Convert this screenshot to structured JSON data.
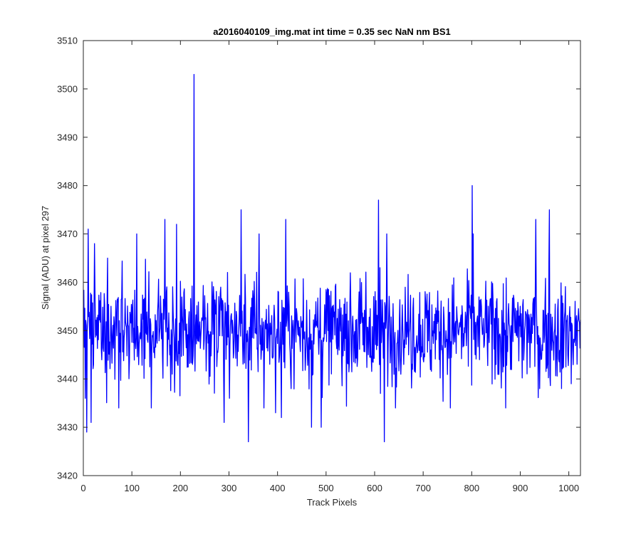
{
  "chart_data": {
    "type": "line",
    "title": "a2016040109_img.mat int time = 0.35 sec  NaN nm BS1",
    "xlabel": "Track Pixels",
    "ylabel": "Signal (ADU) at pixel 297",
    "xlim": [
      0,
      1024
    ],
    "ylim": [
      3420,
      3510
    ],
    "xticks": [
      0,
      100,
      200,
      300,
      400,
      500,
      600,
      700,
      800,
      900,
      1000
    ],
    "yticks": [
      3420,
      3430,
      3440,
      3450,
      3460,
      3470,
      3480,
      3490,
      3500,
      3510
    ],
    "grid": false,
    "series": [
      {
        "color": "#0000ff",
        "n_points": 1024,
        "mean": 3450,
        "noise_amplitude": 6,
        "x": [
          4,
          7,
          10,
          16,
          23,
          50,
          73,
          110,
          140,
          168,
          192,
          228,
          290,
          301,
          325,
          340,
          362,
          372,
          396,
          408,
          417,
          470,
          490,
          608,
          612,
          620,
          625,
          756,
          801,
          803,
          870,
          932,
          940,
          960,
          985,
          1005
        ],
        "y": [
          3436,
          3429,
          3471,
          3431,
          3468,
          3465,
          3434,
          3470,
          3434,
          3473,
          3472,
          3503,
          3431,
          3436,
          3475,
          3427,
          3470,
          3434,
          3433,
          3432,
          3473,
          3430,
          3430,
          3477,
          3437,
          3427,
          3470,
          3434,
          3480,
          3470,
          3434,
          3473,
          3438,
          3475,
          3438,
          3439
        ]
      }
    ]
  }
}
